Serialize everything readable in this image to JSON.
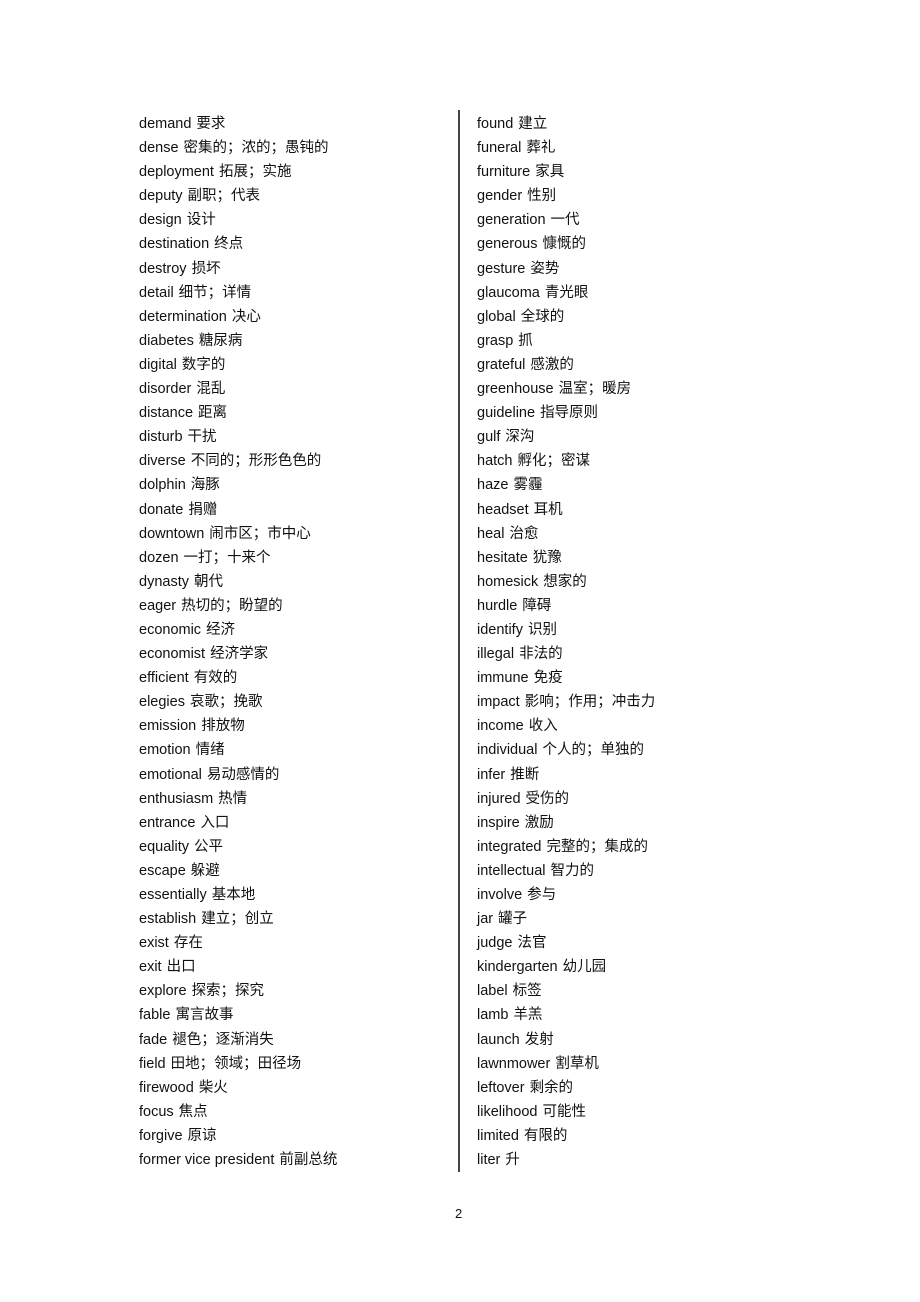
{
  "left_column": [
    {
      "en": "demand",
      "zh": "要求"
    },
    {
      "en": "dense",
      "zh": "密集的；浓的；愚钝的"
    },
    {
      "en": "deployment",
      "zh": "拓展；实施"
    },
    {
      "en": "deputy",
      "zh": "副职；代表"
    },
    {
      "en": "design",
      "zh": "设计"
    },
    {
      "en": "destination",
      "zh": "终点"
    },
    {
      "en": "destroy",
      "zh": "损坏"
    },
    {
      "en": "detail",
      "zh": "细节；详情"
    },
    {
      "en": "determination",
      "zh": "决心"
    },
    {
      "en": "diabetes",
      "zh": "糖尿病"
    },
    {
      "en": "digital",
      "zh": "数字的"
    },
    {
      "en": "disorder",
      "zh": "混乱"
    },
    {
      "en": "distance",
      "zh": "距离"
    },
    {
      "en": "disturb",
      "zh": "干扰"
    },
    {
      "en": "diverse",
      "zh": "不同的；形形色色的"
    },
    {
      "en": "dolphin",
      "zh": "海豚"
    },
    {
      "en": "donate",
      "zh": "捐赠"
    },
    {
      "en": "downtown",
      "zh": "闹市区；市中心"
    },
    {
      "en": "dozen",
      "zh": "一打；十来个"
    },
    {
      "en": "dynasty",
      "zh": "朝代"
    },
    {
      "en": "eager",
      "zh": "热切的；盼望的"
    },
    {
      "en": "economic",
      "zh": "经济"
    },
    {
      "en": "economist",
      "zh": "经济学家"
    },
    {
      "en": "efficient",
      "zh": "有效的"
    },
    {
      "en": "elegies",
      "zh": "哀歌；挽歌"
    },
    {
      "en": "emission",
      "zh": "排放物"
    },
    {
      "en": "emotion",
      "zh": "情绪"
    },
    {
      "en": "emotional",
      "zh": "易动感情的"
    },
    {
      "en": "enthusiasm",
      "zh": "热情"
    },
    {
      "en": "entrance",
      "zh": "入口"
    },
    {
      "en": "equality",
      "zh": "公平"
    },
    {
      "en": "escape",
      "zh": "躲避"
    },
    {
      "en": "essentially",
      "zh": "基本地"
    },
    {
      "en": "establish",
      "zh": "建立；创立"
    },
    {
      "en": "exist",
      "zh": "存在"
    },
    {
      "en": "exit",
      "zh": "出口"
    },
    {
      "en": "explore",
      "zh": "探索；探究"
    },
    {
      "en": "fable",
      "zh": "寓言故事"
    },
    {
      "en": "fade",
      "zh": "褪色；逐渐消失"
    },
    {
      "en": "field",
      "zh": "田地；领域；田径场"
    },
    {
      "en": "firewood",
      "zh": "柴火"
    },
    {
      "en": "focus",
      "zh": "焦点"
    },
    {
      "en": "forgive",
      "zh": "原谅"
    },
    {
      "en": "former vice president",
      "zh": "前副总统"
    }
  ],
  "right_column": [
    {
      "en": "found",
      "zh": "建立"
    },
    {
      "en": "funeral",
      "zh": "葬礼"
    },
    {
      "en": "furniture",
      "zh": "家具"
    },
    {
      "en": "gender",
      "zh": "性别"
    },
    {
      "en": "generation",
      "zh": "一代"
    },
    {
      "en": "generous",
      "zh": "慷慨的"
    },
    {
      "en": "gesture",
      "zh": "姿势"
    },
    {
      "en": "glaucoma",
      "zh": "青光眼"
    },
    {
      "en": "global",
      "zh": "全球的"
    },
    {
      "en": "grasp",
      "zh": "抓"
    },
    {
      "en": "grateful",
      "zh": "感激的"
    },
    {
      "en": "greenhouse",
      "zh": "温室；暖房"
    },
    {
      "en": "guideline",
      "zh": "指导原则"
    },
    {
      "en": "gulf",
      "zh": "深沟"
    },
    {
      "en": "hatch",
      "zh": "孵化；密谋"
    },
    {
      "en": "haze",
      "zh": "雾霾"
    },
    {
      "en": "headset",
      "zh": "耳机"
    },
    {
      "en": "heal",
      "zh": "治愈"
    },
    {
      "en": "hesitate",
      "zh": "犹豫"
    },
    {
      "en": "homesick",
      "zh": "想家的"
    },
    {
      "en": "hurdle",
      "zh": "障碍"
    },
    {
      "en": "identify",
      "zh": "识别"
    },
    {
      "en": "illegal",
      "zh": "非法的"
    },
    {
      "en": "immune",
      "zh": "免疫"
    },
    {
      "en": "impact",
      "zh": "影响；作用；冲击力"
    },
    {
      "en": "income",
      "zh": "收入"
    },
    {
      "en": "individual",
      "zh": "个人的；单独的"
    },
    {
      "en": "infer",
      "zh": "推断"
    },
    {
      "en": "injured",
      "zh": "受伤的"
    },
    {
      "en": "inspire",
      "zh": "激励"
    },
    {
      "en": "integrated",
      "zh": "完整的；集成的"
    },
    {
      "en": "intellectual",
      "zh": "智力的"
    },
    {
      "en": "involve",
      "zh": "参与"
    },
    {
      "en": "jar",
      "zh": "罐子"
    },
    {
      "en": "judge",
      "zh": "法官"
    },
    {
      "en": "kindergarten",
      "zh": "幼儿园"
    },
    {
      "en": "label",
      "zh": "标签"
    },
    {
      "en": "lamb",
      "zh": "羊羔"
    },
    {
      "en": "launch",
      "zh": "发射"
    },
    {
      "en": "lawnmower",
      "zh": "割草机"
    },
    {
      "en": "leftover",
      "zh": "剩余的"
    },
    {
      "en": "likelihood",
      "zh": "可能性"
    },
    {
      "en": "limited",
      "zh": "有限的"
    },
    {
      "en": "liter",
      "zh": "升"
    }
  ],
  "page_number": "2"
}
